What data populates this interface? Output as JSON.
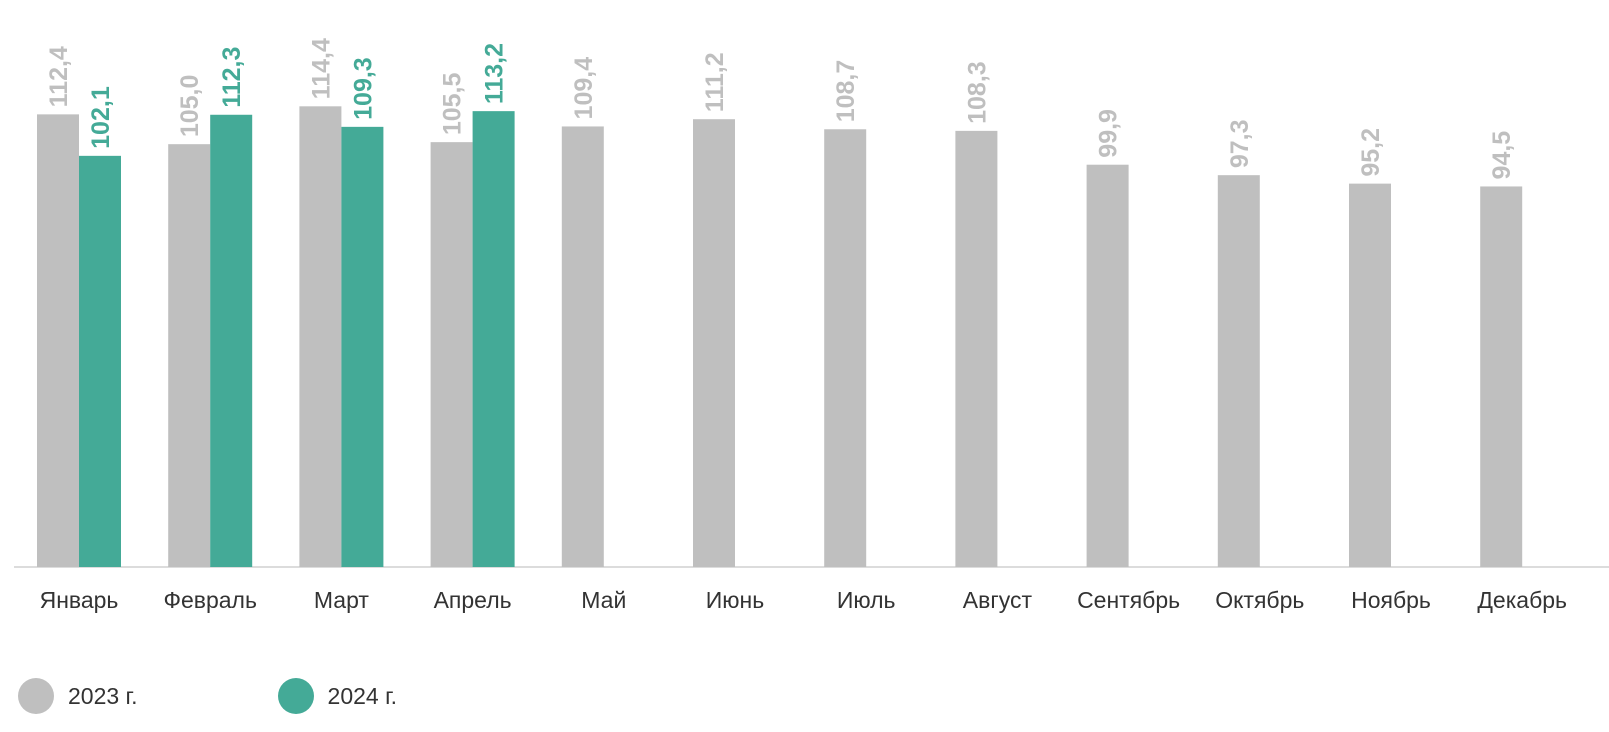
{
  "chart_data": {
    "type": "bar",
    "categories": [
      "Январь",
      "Февраль",
      "Март",
      "Апрель",
      "Май",
      "Июнь",
      "Июль",
      "Август",
      "Сентябрь",
      "Октябрь",
      "Ноябрь",
      "Декабрь"
    ],
    "series": [
      {
        "name": "2023 г.",
        "color": "#bfbfbf",
        "values": [
          112.4,
          105.0,
          114.4,
          105.5,
          109.4,
          111.2,
          108.7,
          108.3,
          99.9,
          97.3,
          95.2,
          94.5
        ],
        "labels": [
          "112,4",
          "105,0",
          "114,4",
          "105,5",
          "109,4",
          "111,2",
          "108,7",
          "108,3",
          "99,9",
          "97,3",
          "95,2",
          "94,5"
        ]
      },
      {
        "name": "2024 г.",
        "color": "#44aa97",
        "values": [
          102.1,
          112.3,
          109.3,
          113.2,
          null,
          null,
          null,
          null,
          null,
          null,
          null,
          null
        ],
        "labels": [
          "102,1",
          "112,3",
          "109,3",
          "113,2",
          "",
          "",
          "",
          "",
          "",
          "",
          "",
          ""
        ]
      }
    ],
    "ylim": [
      0,
      115
    ],
    "grid": false,
    "legend_position": "bottom-left"
  }
}
